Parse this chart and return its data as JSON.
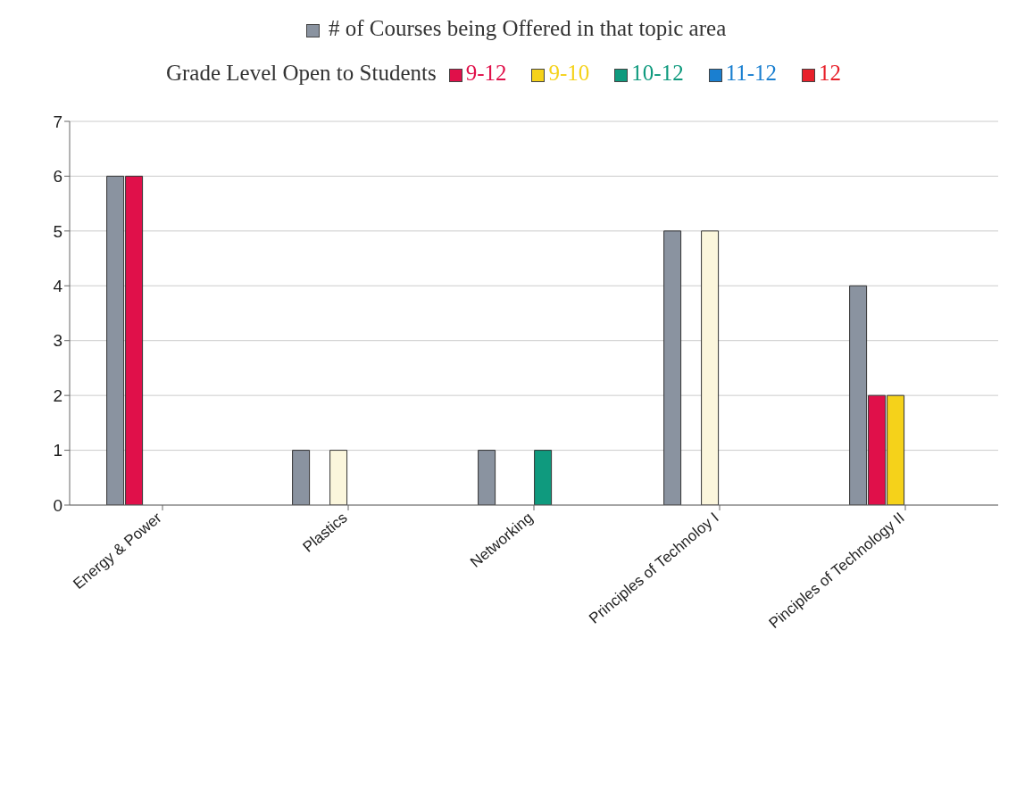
{
  "chart_data": {
    "type": "bar",
    "legend_title": "Grade Level Open to Students",
    "legend": "top",
    "categories": [
      "Energy & Power",
      "Plastics",
      "Networking",
      "Principles of Technoloy I",
      "Pinciples of Technology II"
    ],
    "series": [
      {
        "name": "# of Courses being Offered in that topic area",
        "color": "#8a93a0",
        "values": [
          6,
          1,
          1,
          5,
          4
        ]
      },
      {
        "name": "9-12",
        "color": "#e0104a",
        "values": [
          6,
          null,
          null,
          null,
          2
        ]
      },
      {
        "name": "9-10",
        "color": "#f5d21a",
        "colors": [
          "#f5d21a",
          "#fbf6dc",
          "#f5d21a",
          "#fbf6dc",
          "#f5d21a"
        ],
        "values": [
          null,
          1,
          null,
          5,
          2
        ]
      },
      {
        "name": "10-12",
        "color": "#0f9a7e",
        "values": [
          null,
          null,
          1,
          null,
          null
        ]
      },
      {
        "name": "11-12",
        "color": "#1a7fd0",
        "values": [
          null,
          null,
          null,
          null,
          null
        ]
      },
      {
        "name": "12",
        "color": "#e8202a",
        "values": [
          null,
          null,
          null,
          null,
          null
        ]
      }
    ],
    "ylim": [
      0,
      7
    ],
    "yticks": [
      0,
      1,
      2,
      3,
      4,
      5,
      6,
      7
    ],
    "grid": "y"
  }
}
